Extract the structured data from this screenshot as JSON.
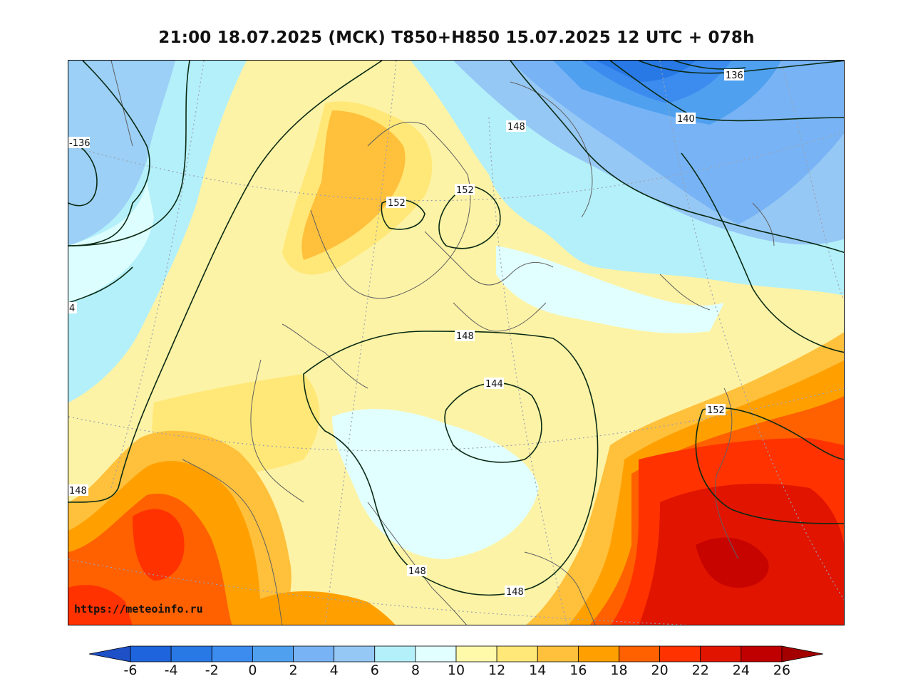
{
  "title": "21:00 18.07.2025 (МСК) T850+H850 15.07.2025 12 UTC + 078h",
  "watermark": "https://meteoinfo.ru",
  "contour_labels": [
    "136",
    "140",
    "148",
    "152",
    "152",
    "-136",
    "4",
    "148",
    "148",
    "144",
    "152",
    "148",
    "148"
  ],
  "colorbar": {
    "ticks": [
      "-6",
      "-4",
      "-2",
      "0",
      "2",
      "4",
      "6",
      "8",
      "10",
      "12",
      "14",
      "16",
      "18",
      "20",
      "22",
      "24",
      "26"
    ],
    "colors": [
      "#1e64dc",
      "#2878e6",
      "#3c8cf0",
      "#50a0f0",
      "#78b4f5",
      "#96c8f5",
      "#b4f0fa",
      "#e1ffff",
      "#fffaaa",
      "#ffe878",
      "#ffc03c",
      "#ffa000",
      "#ff6000",
      "#ff3200",
      "#e11400",
      "#c00000"
    ],
    "under_color": "#1e50c8",
    "over_color": "#a50000"
  }
}
